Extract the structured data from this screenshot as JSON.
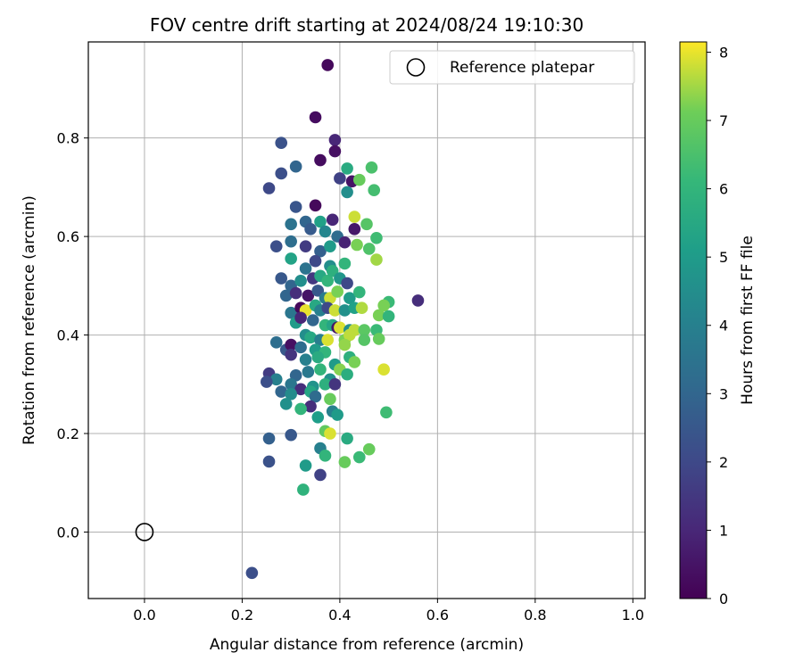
{
  "chart_data": {
    "type": "scatter",
    "title": "FOV centre drift starting at 2024/08/24 19:10:30",
    "xlabel": "Angular distance from reference (arcmin)",
    "ylabel": "Rotation from reference (arcmin)",
    "xlim": [
      -0.115,
      1.025
    ],
    "ylim": [
      -0.135,
      0.995
    ],
    "xticks": [
      "0.0",
      "0.2",
      "0.4",
      "0.6",
      "0.8",
      "1.0"
    ],
    "yticks": [
      "0.0",
      "0.2",
      "0.4",
      "0.6",
      "0.8"
    ],
    "grid": true,
    "legend": {
      "location": "top-right",
      "entries": [
        "Reference platepar"
      ]
    },
    "reference_point": {
      "x": 0.0,
      "y": 0.0,
      "label": "Reference platepar"
    },
    "colorbar": {
      "label": "Hours from first FF file",
      "range": [
        0,
        8.15
      ],
      "ticks": [
        "0",
        "1",
        "2",
        "3",
        "4",
        "5",
        "6",
        "7",
        "8"
      ],
      "colormap": "viridis"
    },
    "points": [
      [
        0.375,
        0.948,
        0.2
      ],
      [
        0.35,
        0.842,
        0.3
      ],
      [
        0.39,
        0.796,
        1.0
      ],
      [
        0.28,
        0.79,
        2.3
      ],
      [
        0.39,
        0.773,
        0.4
      ],
      [
        0.36,
        0.755,
        0.3
      ],
      [
        0.31,
        0.742,
        3.0
      ],
      [
        0.28,
        0.728,
        2.2
      ],
      [
        0.4,
        0.718,
        1.8
      ],
      [
        0.415,
        0.738,
        5.6
      ],
      [
        0.465,
        0.74,
        6.5
      ],
      [
        0.425,
        0.712,
        0.5
      ],
      [
        0.44,
        0.715,
        7.0
      ],
      [
        0.255,
        0.698,
        2.0
      ],
      [
        0.415,
        0.69,
        4.5
      ],
      [
        0.47,
        0.694,
        6.4
      ],
      [
        0.35,
        0.663,
        0.2
      ],
      [
        0.31,
        0.66,
        2.4
      ],
      [
        0.33,
        0.63,
        3.0
      ],
      [
        0.36,
        0.63,
        5.2
      ],
      [
        0.385,
        0.634,
        1.0
      ],
      [
        0.43,
        0.64,
        7.8
      ],
      [
        0.455,
        0.625,
        6.7
      ],
      [
        0.3,
        0.625,
        3.5
      ],
      [
        0.34,
        0.615,
        2.6
      ],
      [
        0.37,
        0.61,
        4.2
      ],
      [
        0.43,
        0.615,
        0.6
      ],
      [
        0.27,
        0.58,
        2.2
      ],
      [
        0.3,
        0.59,
        3.3
      ],
      [
        0.33,
        0.58,
        1.6
      ],
      [
        0.36,
        0.57,
        2.8
      ],
      [
        0.38,
        0.58,
        5.0
      ],
      [
        0.395,
        0.6,
        3.2
      ],
      [
        0.41,
        0.588,
        0.9
      ],
      [
        0.435,
        0.583,
        7.2
      ],
      [
        0.46,
        0.575,
        6.6
      ],
      [
        0.475,
        0.597,
        6.3
      ],
      [
        0.475,
        0.553,
        7.5
      ],
      [
        0.3,
        0.555,
        5.3
      ],
      [
        0.35,
        0.55,
        2.0
      ],
      [
        0.38,
        0.54,
        4.5
      ],
      [
        0.41,
        0.545,
        6.0
      ],
      [
        0.33,
        0.535,
        3.5
      ],
      [
        0.28,
        0.515,
        2.5
      ],
      [
        0.3,
        0.5,
        3.0
      ],
      [
        0.32,
        0.51,
        4.5
      ],
      [
        0.345,
        0.515,
        1.5
      ],
      [
        0.36,
        0.52,
        5.5
      ],
      [
        0.375,
        0.51,
        6.0
      ],
      [
        0.385,
        0.53,
        5.8
      ],
      [
        0.4,
        0.515,
        4.8
      ],
      [
        0.415,
        0.505,
        2.0
      ],
      [
        0.29,
        0.48,
        3.0
      ],
      [
        0.31,
        0.485,
        1.2
      ],
      [
        0.335,
        0.48,
        0.5
      ],
      [
        0.355,
        0.49,
        2.5
      ],
      [
        0.37,
        0.475,
        3.8
      ],
      [
        0.38,
        0.475,
        7.8
      ],
      [
        0.395,
        0.488,
        7.2
      ],
      [
        0.42,
        0.475,
        5.0
      ],
      [
        0.44,
        0.487,
        6.0
      ],
      [
        0.56,
        0.47,
        1.2
      ],
      [
        0.5,
        0.467,
        6.2
      ],
      [
        0.49,
        0.46,
        7.2
      ],
      [
        0.3,
        0.445,
        3.6
      ],
      [
        0.32,
        0.455,
        0.2
      ],
      [
        0.33,
        0.45,
        8.0
      ],
      [
        0.35,
        0.46,
        5.5
      ],
      [
        0.36,
        0.45,
        4.0
      ],
      [
        0.375,
        0.455,
        2.0
      ],
      [
        0.39,
        0.45,
        7.8
      ],
      [
        0.41,
        0.45,
        4.6
      ],
      [
        0.43,
        0.455,
        5.2
      ],
      [
        0.445,
        0.455,
        7.6
      ],
      [
        0.48,
        0.44,
        7.2
      ],
      [
        0.5,
        0.438,
        6.0
      ],
      [
        0.31,
        0.425,
        5.0
      ],
      [
        0.32,
        0.435,
        1.0
      ],
      [
        0.345,
        0.43,
        3.0
      ],
      [
        0.37,
        0.42,
        6.0
      ],
      [
        0.385,
        0.42,
        5.4
      ],
      [
        0.395,
        0.415,
        0.6
      ],
      [
        0.4,
        0.415,
        7.9
      ],
      [
        0.42,
        0.41,
        4.5
      ],
      [
        0.43,
        0.41,
        7.7
      ],
      [
        0.45,
        0.41,
        6.8
      ],
      [
        0.475,
        0.41,
        6.2
      ],
      [
        0.27,
        0.385,
        3.3
      ],
      [
        0.33,
        0.4,
        4.5
      ],
      [
        0.34,
        0.395,
        5.5
      ],
      [
        0.36,
        0.39,
        3.9
      ],
      [
        0.375,
        0.39,
        7.9
      ],
      [
        0.41,
        0.39,
        7.2
      ],
      [
        0.42,
        0.4,
        7.7
      ],
      [
        0.45,
        0.39,
        6.7
      ],
      [
        0.48,
        0.392,
        7.0
      ],
      [
        0.29,
        0.37,
        2.5
      ],
      [
        0.3,
        0.38,
        0.4
      ],
      [
        0.32,
        0.375,
        3.2
      ],
      [
        0.35,
        0.37,
        5.0
      ],
      [
        0.37,
        0.365,
        6.0
      ],
      [
        0.41,
        0.38,
        7.4
      ],
      [
        0.3,
        0.36,
        1.4
      ],
      [
        0.33,
        0.35,
        4.0
      ],
      [
        0.355,
        0.355,
        5.6
      ],
      [
        0.39,
        0.34,
        5.0
      ],
      [
        0.42,
        0.355,
        5.8
      ],
      [
        0.43,
        0.345,
        7.2
      ],
      [
        0.49,
        0.33,
        7.9
      ],
      [
        0.255,
        0.322,
        1.6
      ],
      [
        0.27,
        0.31,
        4.0
      ],
      [
        0.31,
        0.318,
        3.0
      ],
      [
        0.335,
        0.325,
        3.7
      ],
      [
        0.36,
        0.33,
        6.0
      ],
      [
        0.38,
        0.31,
        4.6
      ],
      [
        0.4,
        0.33,
        7.3
      ],
      [
        0.415,
        0.32,
        5.7
      ],
      [
        0.25,
        0.305,
        2.2
      ],
      [
        0.3,
        0.3,
        3.6
      ],
      [
        0.32,
        0.29,
        1.2
      ],
      [
        0.345,
        0.295,
        4.7
      ],
      [
        0.37,
        0.3,
        5.8
      ],
      [
        0.39,
        0.3,
        1.4
      ],
      [
        0.28,
        0.285,
        3.0
      ],
      [
        0.3,
        0.28,
        4.4
      ],
      [
        0.34,
        0.285,
        5.4
      ],
      [
        0.35,
        0.275,
        3.2
      ],
      [
        0.38,
        0.27,
        7.0
      ],
      [
        0.29,
        0.26,
        4.6
      ],
      [
        0.34,
        0.255,
        1.2
      ],
      [
        0.32,
        0.25,
        6.0
      ],
      [
        0.385,
        0.245,
        4.0
      ],
      [
        0.395,
        0.238,
        5.0
      ],
      [
        0.355,
        0.233,
        5.1
      ],
      [
        0.495,
        0.243,
        6.3
      ],
      [
        0.37,
        0.205,
        6.9
      ],
      [
        0.38,
        0.2,
        7.9
      ],
      [
        0.255,
        0.19,
        2.8
      ],
      [
        0.3,
        0.197,
        2.5
      ],
      [
        0.415,
        0.19,
        5.6
      ],
      [
        0.36,
        0.17,
        4.0
      ],
      [
        0.46,
        0.168,
        7.0
      ],
      [
        0.37,
        0.155,
        6.0
      ],
      [
        0.44,
        0.152,
        6.2
      ],
      [
        0.255,
        0.143,
        2.3
      ],
      [
        0.33,
        0.135,
        5.0
      ],
      [
        0.41,
        0.142,
        7.0
      ],
      [
        0.36,
        0.116,
        1.8
      ],
      [
        0.325,
        0.086,
        5.9
      ],
      [
        0.22,
        -0.083,
        2.2
      ]
    ]
  }
}
